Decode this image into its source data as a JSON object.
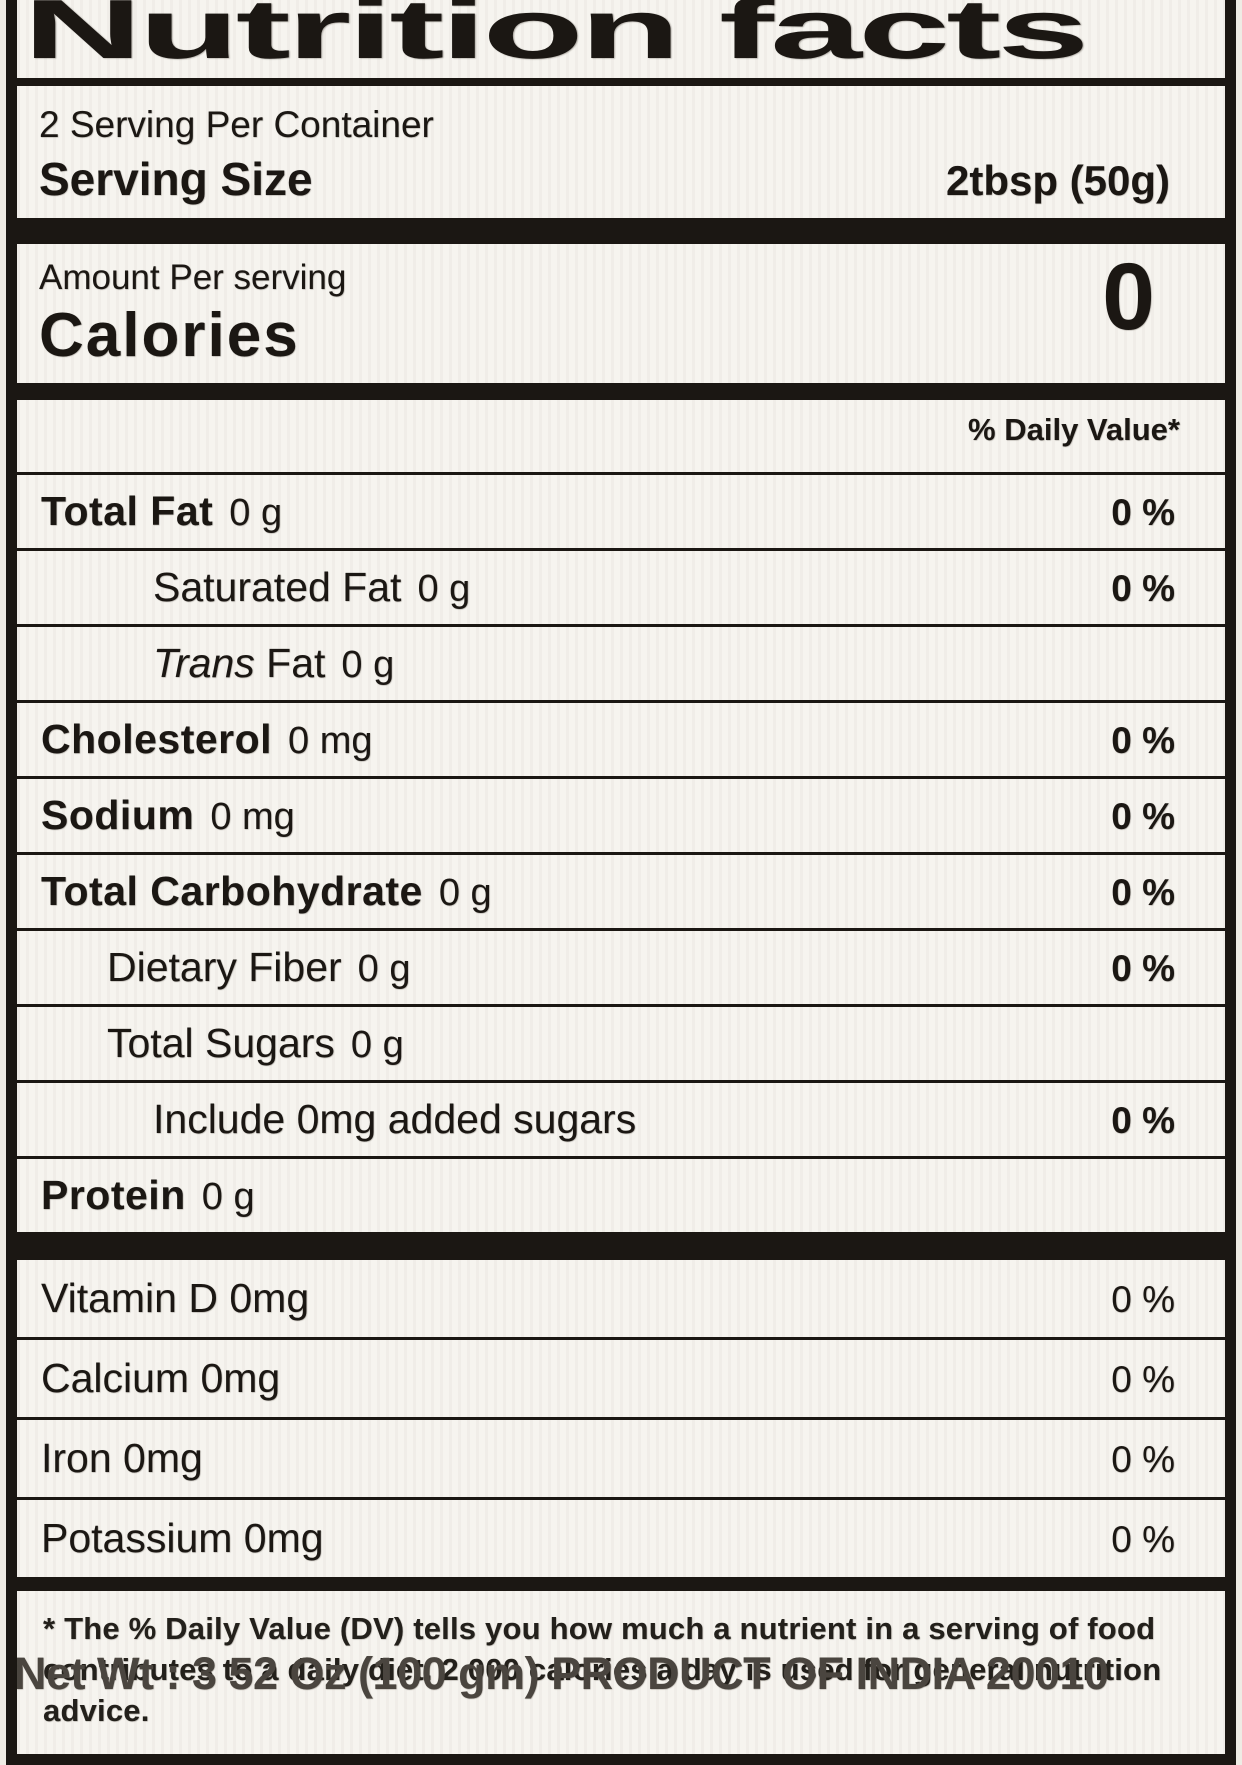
{
  "colors": {
    "ink": "#1b1713",
    "label_bg": "#f6f4ef",
    "page_bg": "#efece5",
    "muted_ink": "#4a453f"
  },
  "label": {
    "title": "Nutrition facts",
    "servings_per_container": "2 Serving Per Container",
    "serving_size": {
      "label": "Serving Size",
      "value": "2tbsp (50g)"
    },
    "calories": {
      "header": "Amount Per serving",
      "label": "Calories",
      "value": "0"
    },
    "daily_value_header": "% Daily Value*",
    "nutrients": [
      {
        "name": "Total Fat",
        "amount": "0 g",
        "dv": "0 %",
        "bold": true,
        "level": 0
      },
      {
        "name": "Saturated Fat",
        "amount": "0 g",
        "dv": "0 %",
        "bold": false,
        "level": 2
      },
      {
        "name": "Trans Fat",
        "italic_word": "Trans",
        "amount": "0 g",
        "dv": "",
        "bold": false,
        "level": 2
      },
      {
        "name": "Cholesterol",
        "amount": "0 mg",
        "dv": "0 %",
        "bold": true,
        "level": 0
      },
      {
        "name": "Sodium",
        "amount": "0 mg",
        "dv": "0 %",
        "bold": true,
        "level": 0
      },
      {
        "name": "Total Carbohydrate",
        "amount": "0 g",
        "dv": "0 %",
        "bold": true,
        "level": 0
      },
      {
        "name": "Dietary Fiber",
        "amount": "0 g",
        "dv": "0 %",
        "bold": false,
        "level": 1
      },
      {
        "name": "Total Sugars",
        "amount": "0 g",
        "dv": "",
        "bold": false,
        "level": 1
      },
      {
        "name": "Include 0mg added sugars",
        "amount": "",
        "dv": "0 %",
        "bold": false,
        "level": 2
      },
      {
        "name": "Protein",
        "amount": "0 g",
        "dv": "",
        "bold": true,
        "level": 0
      }
    ],
    "micronutrients": [
      {
        "name": "Vitamin D 0mg",
        "dv": "0 %"
      },
      {
        "name": "Calcium 0mg",
        "dv": "0 %"
      },
      {
        "name": "Iron 0mg",
        "dv": "0 %"
      },
      {
        "name": "Potassium 0mg",
        "dv": "0 %"
      }
    ],
    "footnote": "* The % Daily Value (DV) tells you how much a nutrient in a serving of food contributes to a daily diet. 2,000 calories a day is used for general nutrition advice.",
    "net_weight": "Net Wt : 3 52 Oz (100 gm) PRODUCT OF INDIA 20010"
  }
}
